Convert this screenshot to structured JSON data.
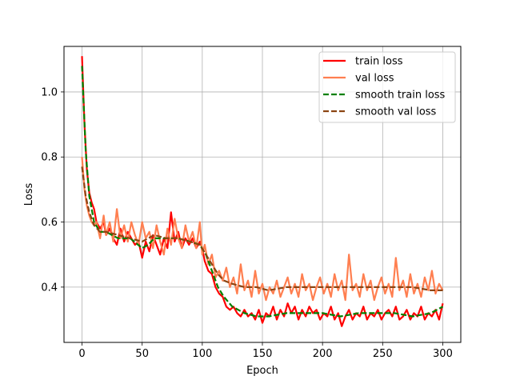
{
  "chart_data": {
    "type": "line",
    "title": "",
    "xlabel": "Epoch",
    "ylabel": "Loss",
    "xlim": [
      -15,
      315
    ],
    "ylim": [
      0.23,
      1.14
    ],
    "xticks": [
      0,
      50,
      100,
      150,
      200,
      250,
      300
    ],
    "yticks": [
      0.4,
      0.6,
      0.8,
      1.0
    ],
    "xtick_labels": [
      "0",
      "50",
      "100",
      "150",
      "200",
      "250",
      "300"
    ],
    "ytick_labels": [
      "0.4",
      "0.6",
      "0.8",
      "1.0"
    ],
    "grid": true,
    "legend_position": "top-right",
    "series": [
      {
        "name": "train loss",
        "color": "#ff0000",
        "style": "solid",
        "x": [
          0,
          2,
          4,
          6,
          8,
          10,
          12,
          15,
          18,
          20,
          23,
          26,
          29,
          32,
          35,
          38,
          41,
          44,
          47,
          50,
          53,
          56,
          59,
          62,
          65,
          68,
          71,
          74,
          77,
          80,
          83,
          86,
          89,
          92,
          95,
          98,
          100,
          102,
          105,
          108,
          111,
          114,
          117,
          120,
          123,
          126,
          129,
          132,
          135,
          138,
          141,
          144,
          147,
          150,
          153,
          156,
          159,
          162,
          165,
          168,
          171,
          174,
          177,
          180,
          183,
          186,
          189,
          192,
          195,
          198,
          201,
          204,
          207,
          210,
          213,
          216,
          219,
          222,
          225,
          228,
          231,
          234,
          237,
          240,
          243,
          246,
          249,
          252,
          255,
          258,
          261,
          264,
          267,
          270,
          273,
          276,
          279,
          282,
          285,
          288,
          291,
          294,
          297,
          300
        ],
        "y": [
          1.11,
          0.9,
          0.76,
          0.69,
          0.66,
          0.64,
          0.6,
          0.58,
          0.6,
          0.56,
          0.58,
          0.55,
          0.53,
          0.58,
          0.54,
          0.57,
          0.55,
          0.53,
          0.54,
          0.49,
          0.54,
          0.51,
          0.56,
          0.53,
          0.5,
          0.55,
          0.52,
          0.63,
          0.54,
          0.57,
          0.52,
          0.55,
          0.53,
          0.55,
          0.52,
          0.54,
          0.52,
          0.48,
          0.45,
          0.44,
          0.4,
          0.38,
          0.37,
          0.34,
          0.33,
          0.34,
          0.32,
          0.31,
          0.33,
          0.31,
          0.32,
          0.3,
          0.33,
          0.29,
          0.32,
          0.31,
          0.34,
          0.3,
          0.33,
          0.31,
          0.35,
          0.32,
          0.34,
          0.3,
          0.33,
          0.31,
          0.34,
          0.32,
          0.33,
          0.3,
          0.32,
          0.31,
          0.34,
          0.3,
          0.32,
          0.28,
          0.31,
          0.33,
          0.3,
          0.32,
          0.31,
          0.34,
          0.3,
          0.32,
          0.31,
          0.33,
          0.3,
          0.32,
          0.33,
          0.31,
          0.34,
          0.3,
          0.31,
          0.33,
          0.3,
          0.32,
          0.31,
          0.34,
          0.3,
          0.32,
          0.31,
          0.33,
          0.3,
          0.35
        ]
      },
      {
        "name": "val loss",
        "color": "#ff7f50",
        "style": "solid",
        "x": [
          0,
          2,
          4,
          6,
          8,
          10,
          12,
          15,
          18,
          20,
          23,
          26,
          29,
          32,
          35,
          38,
          41,
          44,
          47,
          50,
          53,
          56,
          59,
          62,
          65,
          68,
          71,
          74,
          77,
          80,
          83,
          86,
          89,
          92,
          95,
          98,
          100,
          102,
          105,
          108,
          111,
          114,
          117,
          120,
          123,
          126,
          129,
          132,
          135,
          138,
          141,
          144,
          147,
          150,
          153,
          156,
          159,
          162,
          165,
          168,
          171,
          174,
          177,
          180,
          183,
          186,
          189,
          192,
          195,
          198,
          201,
          204,
          207,
          210,
          213,
          216,
          219,
          222,
          225,
          228,
          231,
          234,
          237,
          240,
          243,
          246,
          249,
          252,
          255,
          258,
          261,
          264,
          267,
          270,
          273,
          276,
          279,
          282,
          285,
          288,
          291,
          294,
          297,
          300
        ],
        "y": [
          0.8,
          0.7,
          0.65,
          0.62,
          0.6,
          0.59,
          0.6,
          0.55,
          0.62,
          0.56,
          0.6,
          0.54,
          0.64,
          0.55,
          0.59,
          0.54,
          0.6,
          0.56,
          0.53,
          0.6,
          0.55,
          0.57,
          0.52,
          0.59,
          0.54,
          0.5,
          0.58,
          0.53,
          0.61,
          0.55,
          0.52,
          0.59,
          0.54,
          0.57,
          0.52,
          0.6,
          0.5,
          0.53,
          0.47,
          0.5,
          0.43,
          0.45,
          0.42,
          0.46,
          0.4,
          0.43,
          0.38,
          0.47,
          0.39,
          0.42,
          0.37,
          0.45,
          0.38,
          0.41,
          0.36,
          0.4,
          0.38,
          0.42,
          0.37,
          0.4,
          0.43,
          0.38,
          0.41,
          0.37,
          0.44,
          0.39,
          0.41,
          0.36,
          0.4,
          0.43,
          0.38,
          0.41,
          0.37,
          0.44,
          0.39,
          0.42,
          0.36,
          0.5,
          0.39,
          0.41,
          0.37,
          0.44,
          0.39,
          0.42,
          0.36,
          0.4,
          0.43,
          0.38,
          0.41,
          0.37,
          0.49,
          0.39,
          0.42,
          0.37,
          0.44,
          0.38,
          0.41,
          0.37,
          0.43,
          0.39,
          0.45,
          0.38,
          0.41,
          0.39
        ]
      },
      {
        "name": "smooth train loss",
        "color": "#008000",
        "style": "dashed",
        "x": [
          0,
          3,
          6,
          10,
          15,
          20,
          30,
          40,
          50,
          55,
          60,
          70,
          80,
          90,
          98,
          103,
          108,
          113,
          118,
          125,
          135,
          145,
          155,
          170,
          185,
          200,
          215,
          230,
          245,
          260,
          275,
          290,
          300
        ],
        "y": [
          1.08,
          0.82,
          0.68,
          0.6,
          0.57,
          0.57,
          0.55,
          0.55,
          0.52,
          0.53,
          0.55,
          0.55,
          0.55,
          0.54,
          0.53,
          0.5,
          0.45,
          0.4,
          0.37,
          0.34,
          0.32,
          0.31,
          0.31,
          0.32,
          0.32,
          0.32,
          0.31,
          0.32,
          0.32,
          0.32,
          0.31,
          0.32,
          0.34
        ]
      },
      {
        "name": "smooth val loss",
        "color": "#8b4513",
        "style": "dashed",
        "x": [
          0,
          3,
          6,
          10,
          15,
          20,
          30,
          40,
          50,
          55,
          60,
          70,
          80,
          90,
          98,
          103,
          108,
          113,
          118,
          125,
          135,
          145,
          155,
          170,
          185,
          200,
          215,
          230,
          245,
          260,
          275,
          290,
          300
        ],
        "y": [
          0.77,
          0.68,
          0.63,
          0.59,
          0.57,
          0.57,
          0.56,
          0.55,
          0.54,
          0.55,
          0.56,
          0.55,
          0.55,
          0.54,
          0.53,
          0.5,
          0.47,
          0.44,
          0.42,
          0.41,
          0.4,
          0.4,
          0.39,
          0.4,
          0.4,
          0.4,
          0.4,
          0.4,
          0.4,
          0.4,
          0.4,
          0.39,
          0.39
        ]
      }
    ]
  }
}
